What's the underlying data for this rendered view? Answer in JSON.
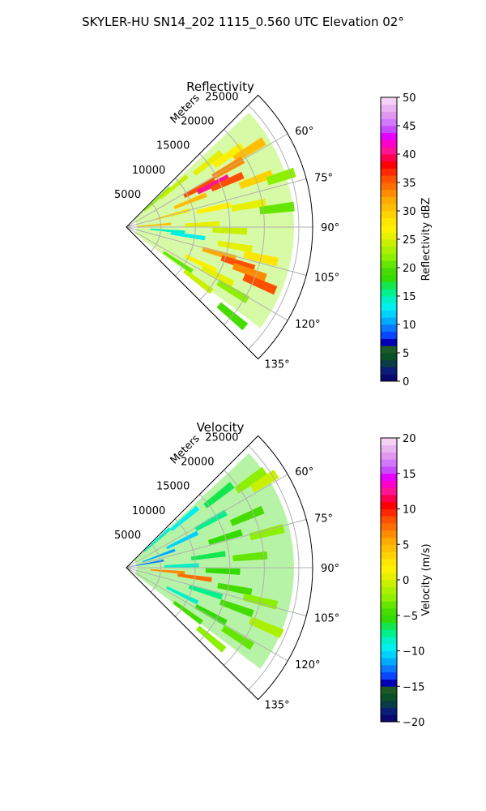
{
  "figure_title": "SKYLER-HU  SN14_202  1115_0.560 UTC Elevation 02°",
  "chart_data": [
    {
      "type": "polar-sector",
      "title": "Reflectivity",
      "range_label": "Meters",
      "azimuth_range_deg": [
        45,
        135
      ],
      "range_limits": [
        0,
        27000
      ],
      "radial_ticks": [
        5000,
        10000,
        15000,
        20000,
        25000
      ],
      "radial_tick_labels": [
        "5000",
        "10000",
        "15000",
        "20000",
        "25000"
      ],
      "azimuth_ticks_deg": [
        60,
        75,
        90,
        105,
        120,
        135
      ],
      "azimuth_tick_labels": [
        "60°",
        "75°",
        "90°",
        "105°",
        "120°",
        "135°"
      ],
      "grid": true,
      "colorbar": {
        "label": "Reflectivity dBZ",
        "range": [
          0,
          50
        ],
        "ticks": [
          0,
          5,
          10,
          15,
          20,
          25,
          30,
          35,
          40,
          45,
          50
        ],
        "tick_labels": [
          "0",
          "5",
          "10",
          "15",
          "20",
          "25",
          "30",
          "35",
          "40",
          "45",
          "50"
        ],
        "colors": [
          "#0a0a6e",
          "#0a1e78",
          "#0a3c46",
          "#0a5028",
          "#1e5a28",
          "#0000b4",
          "#0a46ff",
          "#0a78ff",
          "#00aaff",
          "#00d2ff",
          "#00f0f0",
          "#00f0c8",
          "#00f08c",
          "#14e650",
          "#32dc00",
          "#46dc00",
          "#64e600",
          "#8cf000",
          "#aaf000",
          "#c8f000",
          "#e6f000",
          "#fff000",
          "#ffe600",
          "#ffd200",
          "#ffbe00",
          "#ffaa00",
          "#ff8c00",
          "#ff6e00",
          "#ff5000",
          "#ff2800",
          "#ff0000",
          "#ff0050",
          "#ff1493",
          "#ff00c8",
          "#e600ff",
          "#c84bff",
          "#d278ff",
          "#e196f0",
          "#eab4f0",
          "#f5d2f5"
        ]
      },
      "field_cells": [
        {
          "az": 48,
          "r": 6000,
          "v": 22
        },
        {
          "az": 50,
          "r": 9000,
          "v": 24
        },
        {
          "az": 52,
          "r": 15000,
          "v": 26
        },
        {
          "az": 55,
          "r": 18000,
          "v": 27
        },
        {
          "az": 58,
          "r": 21000,
          "v": 31
        },
        {
          "az": 60,
          "r": 17000,
          "v": 33
        },
        {
          "az": 62,
          "r": 12000,
          "v": 36
        },
        {
          "az": 64,
          "r": 14000,
          "v": 41
        },
        {
          "az": 66,
          "r": 16000,
          "v": 36
        },
        {
          "az": 68,
          "r": 10000,
          "v": 31
        },
        {
          "az": 70,
          "r": 20000,
          "v": 29
        },
        {
          "az": 72,
          "r": 24000,
          "v": 22
        },
        {
          "az": 75,
          "r": 7000,
          "v": 28
        },
        {
          "az": 78,
          "r": 13000,
          "v": 27
        },
        {
          "az": 80,
          "r": 18000,
          "v": 25
        },
        {
          "az": 83,
          "r": 22000,
          "v": 21
        },
        {
          "az": 86,
          "r": 4000,
          "v": 30
        },
        {
          "az": 88,
          "r": 11000,
          "v": 26
        },
        {
          "az": 92,
          "r": 15000,
          "v": 24
        },
        {
          "az": 95,
          "r": 6000,
          "v": 14
        },
        {
          "az": 98,
          "r": 9000,
          "v": 13
        },
        {
          "az": 100,
          "r": 16000,
          "v": 26
        },
        {
          "az": 103,
          "r": 20000,
          "v": 28
        },
        {
          "az": 106,
          "r": 14000,
          "v": 32
        },
        {
          "az": 108,
          "r": 17000,
          "v": 36
        },
        {
          "az": 110,
          "r": 19000,
          "v": 33
        },
        {
          "az": 113,
          "r": 21000,
          "v": 35
        },
        {
          "az": 116,
          "r": 12000,
          "v": 27
        },
        {
          "az": 118,
          "r": 15000,
          "v": 25
        },
        {
          "az": 121,
          "r": 18000,
          "v": 22
        },
        {
          "az": 124,
          "r": 9000,
          "v": 20
        },
        {
          "az": 127,
          "r": 13000,
          "v": 24
        },
        {
          "az": 130,
          "r": 20000,
          "v": 19
        }
      ]
    },
    {
      "type": "polar-sector",
      "title": "Velocity",
      "range_label": "Meters",
      "azimuth_range_deg": [
        45,
        135
      ],
      "range_limits": [
        0,
        27000
      ],
      "radial_ticks": [
        5000,
        10000,
        15000,
        20000,
        25000
      ],
      "radial_tick_labels": [
        "5000",
        "10000",
        "15000",
        "20000",
        "25000"
      ],
      "azimuth_ticks_deg": [
        60,
        75,
        90,
        105,
        120,
        135
      ],
      "azimuth_tick_labels": [
        "60°",
        "75°",
        "90°",
        "105°",
        "120°",
        "135°"
      ],
      "grid": true,
      "colorbar": {
        "label": "Velocity (m/s)",
        "range": [
          -20,
          20
        ],
        "ticks": [
          -20,
          -15,
          -10,
          -5,
          0,
          5,
          10,
          15,
          20
        ],
        "tick_labels": [
          "−20",
          "−15",
          "−10",
          "−5",
          "0",
          "5",
          "10",
          "15",
          "20"
        ],
        "colors": [
          "#0a0a6e",
          "#0a1e78",
          "#0a3c46",
          "#0a5028",
          "#1e5a28",
          "#0000b4",
          "#0a46ff",
          "#0a78ff",
          "#00aaff",
          "#00d2ff",
          "#00f0f0",
          "#00f0c8",
          "#00f08c",
          "#14e650",
          "#32dc00",
          "#46dc00",
          "#64e600",
          "#8cf000",
          "#aaf000",
          "#c8f000",
          "#e6f000",
          "#fff000",
          "#ffe600",
          "#ffd200",
          "#ffbe00",
          "#ffaa00",
          "#ff8c00",
          "#ff6e00",
          "#ff5000",
          "#ff2800",
          "#ff0000",
          "#ff0050",
          "#ff1493",
          "#ff00c8",
          "#e600ff",
          "#c84bff",
          "#d278ff",
          "#e196f0",
          "#eab4f0",
          "#f5d2f5"
        ]
      },
      "field_cells": [
        {
          "az": 48,
          "r": 6000,
          "v": -9
        },
        {
          "az": 50,
          "r": 11000,
          "v": -10
        },
        {
          "az": 52,
          "r": 17000,
          "v": -7
        },
        {
          "az": 55,
          "r": 22000,
          "v": -3
        },
        {
          "az": 58,
          "r": 24000,
          "v": -1
        },
        {
          "az": 61,
          "r": 14000,
          "v": -8
        },
        {
          "az": 64,
          "r": 9000,
          "v": -11
        },
        {
          "az": 67,
          "r": 19000,
          "v": -5
        },
        {
          "az": 70,
          "r": 5000,
          "v": -12
        },
        {
          "az": 73,
          "r": 15000,
          "v": -6
        },
        {
          "az": 76,
          "r": 21000,
          "v": -3
        },
        {
          "az": 79,
          "r": 3000,
          "v": -13
        },
        {
          "az": 82,
          "r": 12000,
          "v": -7
        },
        {
          "az": 85,
          "r": 18000,
          "v": -4
        },
        {
          "az": 88,
          "r": 8000,
          "v": -9
        },
        {
          "az": 92,
          "r": 14000,
          "v": -6
        },
        {
          "az": 95,
          "r": 6000,
          "v": 6
        },
        {
          "az": 98,
          "r": 10000,
          "v": 7
        },
        {
          "az": 101,
          "r": 16000,
          "v": -5
        },
        {
          "az": 104,
          "r": 20000,
          "v": -3
        },
        {
          "az": 107,
          "r": 12000,
          "v": -8
        },
        {
          "az": 110,
          "r": 17000,
          "v": -5
        },
        {
          "az": 113,
          "r": 22000,
          "v": -2
        },
        {
          "az": 116,
          "r": 9000,
          "v": -9
        },
        {
          "az": 119,
          "r": 14000,
          "v": -6
        },
        {
          "az": 122,
          "r": 19000,
          "v": -4
        },
        {
          "az": 126,
          "r": 11000,
          "v": -5
        },
        {
          "az": 130,
          "r": 16000,
          "v": -3
        }
      ]
    }
  ]
}
